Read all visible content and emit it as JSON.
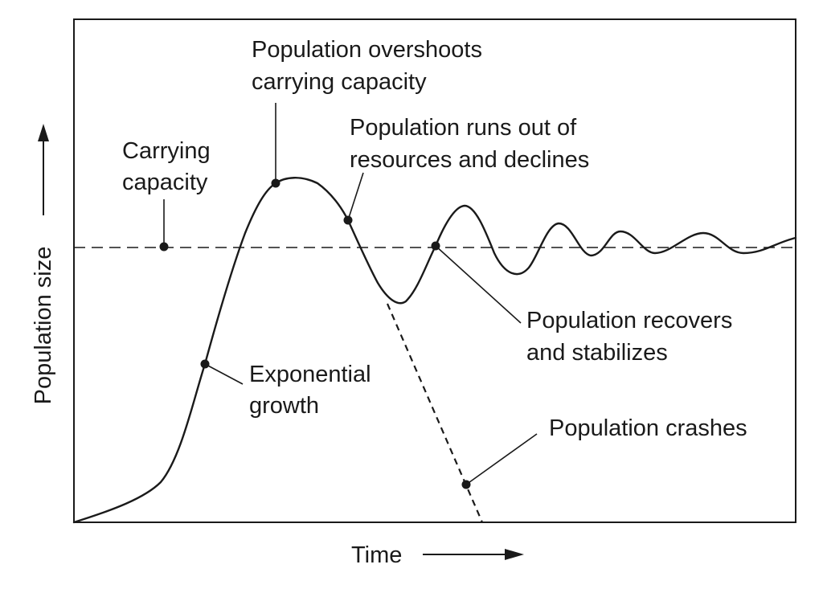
{
  "axes": {
    "y_label": "Population size",
    "x_label": "Time"
  },
  "annotations": {
    "carrying_capacity": [
      "Carrying",
      "capacity"
    ],
    "overshoot": [
      "Population overshoots",
      "carrying capacity"
    ],
    "runs_out": [
      "Population runs out of",
      "resources and declines"
    ],
    "exponential": [
      "Exponential",
      "growth"
    ],
    "recovers": [
      "Population recovers",
      "and stabilizes"
    ],
    "crashes": "Population crashes"
  },
  "colors": {
    "stroke": "#1a1a1a",
    "background": "#ffffff"
  }
}
